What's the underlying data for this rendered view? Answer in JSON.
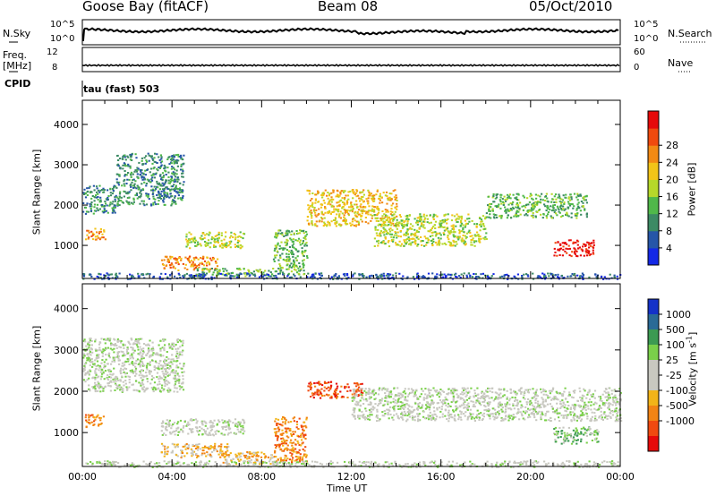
{
  "header": {
    "station": "Goose Bay (fitACF)",
    "beam": "Beam 08",
    "date": "05/Oct/2010"
  },
  "strips": {
    "nsky": {
      "label": "N.Sky",
      "tick_top": "10^5",
      "tick_bottom": "10^0",
      "right_label": "N.Search",
      "right_top": "10^5",
      "right_bottom": "10^0"
    },
    "freq": {
      "label_line1": "Freq.",
      "label_line2": "[MHz]",
      "tick_top": "12",
      "tick_bottom": "8",
      "right_label": "Nave",
      "right_top": "60",
      "right_bottom": "0"
    },
    "cpid": {
      "label": "CPID",
      "value": "tau (fast) 503"
    }
  },
  "chart_data": [
    {
      "type": "heatmap",
      "name": "power-panel",
      "ylabel": "Slant Range [km]",
      "ylim": [
        180,
        4600
      ],
      "yticks": [
        1000,
        2000,
        3000,
        4000
      ],
      "xlim_hours": [
        0,
        24
      ],
      "colorbar": {
        "label": "Power [dB]",
        "ticks": [
          "4",
          "8",
          "12",
          "16",
          "20",
          "24",
          "28"
        ],
        "colors": [
          "#1428e6",
          "#2656a8",
          "#3c8a64",
          "#50b84a",
          "#b6d82a",
          "#f2c418",
          "#f28a14",
          "#f04a0e",
          "#e60a0a"
        ]
      },
      "regions": [
        {
          "t": [
            0.0,
            1.5
          ],
          "r": [
            1800,
            2500
          ],
          "level": 2
        },
        {
          "t": [
            1.5,
            4.5
          ],
          "r": [
            2000,
            3300
          ],
          "level": 2
        },
        {
          "t": [
            0.1,
            1.0
          ],
          "r": [
            1150,
            1450
          ],
          "level": 6
        },
        {
          "t": [
            3.5,
            6.0
          ],
          "r": [
            400,
            750
          ],
          "level": 6
        },
        {
          "t": [
            4.5,
            7.2
          ],
          "r": [
            950,
            1350
          ],
          "level": 4
        },
        {
          "t": [
            5.0,
            8.5
          ],
          "r": [
            250,
            450
          ],
          "level": 3
        },
        {
          "t": [
            8.5,
            10.0
          ],
          "r": [
            300,
            1400
          ],
          "level": 3
        },
        {
          "t": [
            10.0,
            14.0
          ],
          "r": [
            1500,
            2400
          ],
          "level": 5
        },
        {
          "t": [
            13.0,
            18.0
          ],
          "r": [
            1000,
            1800
          ],
          "level": 4
        },
        {
          "t": [
            18.0,
            22.5
          ],
          "r": [
            1700,
            2300
          ],
          "level": 3
        },
        {
          "t": [
            21.0,
            22.8
          ],
          "r": [
            750,
            1150
          ],
          "level": 8
        },
        {
          "t": [
            0.0,
            24.0
          ],
          "r": [
            180,
            330
          ],
          "level": 1
        }
      ]
    },
    {
      "type": "heatmap",
      "name": "velocity-panel",
      "ylabel": "Slant Range [km]",
      "xlabel": "Time UT",
      "ylim": [
        180,
        4600
      ],
      "yticks": [
        1000,
        2000,
        3000,
        4000
      ],
      "xlim_hours": [
        0,
        24
      ],
      "xticks": [
        "00:00",
        "04:00",
        "08:00",
        "12:00",
        "16:00",
        "20:00",
        "00:00"
      ],
      "colorbar": {
        "label": "Velocity [m s^-1]",
        "ticks": [
          "1000",
          "500",
          "100",
          "25",
          "-25",
          "-100",
          "-500",
          "-1000"
        ],
        "colors": [
          "#1432c8",
          "#2a6a96",
          "#3c9a52",
          "#7ad04a",
          "#c8c8c0",
          "#c8c8c0",
          "#f2b418",
          "#f28414",
          "#f04a10",
          "#e60a0a"
        ]
      },
      "regions": [
        {
          "t": [
            0.0,
            4.5
          ],
          "r": [
            2000,
            3300
          ],
          "level": 4
        },
        {
          "t": [
            0.1,
            1.0
          ],
          "r": [
            1150,
            1450
          ],
          "level": 7
        },
        {
          "t": [
            3.5,
            7.2
          ],
          "r": [
            950,
            1350
          ],
          "level": 4
        },
        {
          "t": [
            3.5,
            6.5
          ],
          "r": [
            400,
            750
          ],
          "level": 6
        },
        {
          "t": [
            6.0,
            8.5
          ],
          "r": [
            250,
            550
          ],
          "level": 6
        },
        {
          "t": [
            8.5,
            10.0
          ],
          "r": [
            300,
            1400
          ],
          "level": 7
        },
        {
          "t": [
            10.0,
            12.5
          ],
          "r": [
            1850,
            2250
          ],
          "level": 8
        },
        {
          "t": [
            12.0,
            24.0
          ],
          "r": [
            1300,
            2100
          ],
          "level": 4
        },
        {
          "t": [
            21.0,
            23.0
          ],
          "r": [
            750,
            1150
          ],
          "level": 3
        },
        {
          "t": [
            0.0,
            24.0
          ],
          "r": [
            180,
            330
          ],
          "level": 4
        }
      ]
    }
  ]
}
